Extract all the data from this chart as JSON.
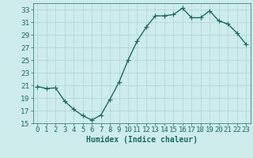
{
  "x": [
    0,
    1,
    2,
    3,
    4,
    5,
    6,
    7,
    8,
    9,
    10,
    11,
    12,
    13,
    14,
    15,
    16,
    17,
    18,
    19,
    20,
    21,
    22,
    23
  ],
  "y": [
    20.8,
    20.5,
    20.6,
    18.5,
    17.2,
    16.2,
    15.5,
    16.3,
    18.8,
    21.5,
    25.0,
    28.0,
    30.2,
    32.0,
    32.0,
    32.2,
    33.2,
    31.7,
    31.7,
    32.8,
    31.2,
    30.7,
    29.3,
    27.5
  ],
  "line_color": "#1a6b5e",
  "marker": "+",
  "marker_size": 4,
  "linewidth": 1.0,
  "xlabel": "Humidex (Indice chaleur)",
  "xlim": [
    -0.5,
    23.5
  ],
  "ylim": [
    15,
    34
  ],
  "yticks": [
    15,
    17,
    19,
    21,
    23,
    25,
    27,
    29,
    31,
    33
  ],
  "xtick_labels": [
    "0",
    "1",
    "2",
    "3",
    "4",
    "5",
    "6",
    "7",
    "8",
    "9",
    "10",
    "11",
    "12",
    "13",
    "14",
    "15",
    "16",
    "17",
    "18",
    "19",
    "20",
    "21",
    "22",
    "23"
  ],
  "bg_color": "#ceecea",
  "grid_color": "#aed4d2",
  "line_tick_color": "#1a6b5e",
  "xlabel_fontsize": 7,
  "tick_fontsize": 6.5
}
